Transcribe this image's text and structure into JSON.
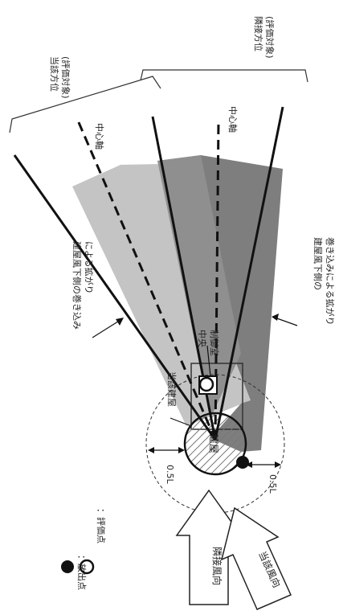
{
  "labels": {
    "current_direction_1": "当該方位",
    "current_direction_2": "(評価対象)",
    "adjacent_direction_1": "隣接方位",
    "adjacent_direction_2": "(評価対象)",
    "center_axis_left": "中心軸",
    "center_axis_right": "中心軸",
    "spread_left_1": "建屋風下側の巻き込み",
    "spread_left_2": "による拡がり",
    "spread_right_1": "建屋風下側の",
    "spread_right_2": "巻き込みによる拡がり",
    "control_room_1": "中央",
    "control_room_2": "制御室",
    "target_building": "当該建屋",
    "building": "建屋",
    "half_l_left": "0.5L",
    "half_l_right": "0.5L",
    "legend_release": "：放出点",
    "legend_evaluation": "：評価点",
    "wind_adjacent": "隣接風向",
    "wind_current": "当該風向"
  },
  "colors": {
    "light_gray": "#c4c4c4",
    "dark_gray": "#7e7e7e",
    "mid_gray": "#a6a6a6",
    "ink": "#111111"
  }
}
